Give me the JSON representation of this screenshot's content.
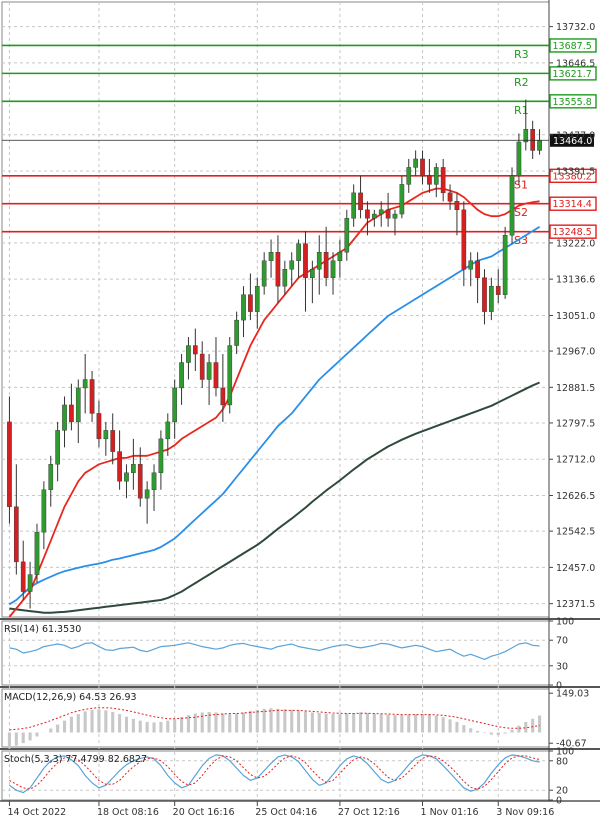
{
  "chart_data": {
    "type": "candlestick",
    "main": {
      "y_ticks": [
        13732.0,
        13646.5,
        13477.0,
        13391.5,
        13222.0,
        13136.6,
        13051.0,
        12967.0,
        12881.5,
        12797.5,
        12712.0,
        12626.5,
        12542.5,
        12457.0,
        12371.5
      ],
      "ylim": [
        12340,
        13790
      ],
      "current_price": "13464.0",
      "levels": [
        {
          "name": "R3",
          "value": 13687.5,
          "label": "13687.5",
          "color": "#1e9a1e"
        },
        {
          "name": "R2",
          "value": 13621.7,
          "label": "13621.7",
          "color": "#1e9a1e"
        },
        {
          "name": "R1",
          "value": 13555.8,
          "label": "13555.8",
          "color": "#1e9a1e"
        },
        {
          "name": "S1",
          "value": 13380.2,
          "label": "13380.2",
          "color": "#e02020"
        },
        {
          "name": "S2",
          "value": 13314.4,
          "label": "13314.4",
          "color": "#e02020"
        },
        {
          "name": "S3",
          "value": 13248.5,
          "label": "13248.5",
          "color": "#e02020"
        }
      ],
      "candles": [
        [
          12800,
          12860,
          12560,
          12600
        ],
        [
          12600,
          12700,
          12440,
          12470
        ],
        [
          12470,
          12520,
          12380,
          12400
        ],
        [
          12400,
          12470,
          12360,
          12440
        ],
        [
          12440,
          12560,
          12420,
          12540
        ],
        [
          12540,
          12660,
          12500,
          12640
        ],
        [
          12640,
          12720,
          12600,
          12700
        ],
        [
          12700,
          12800,
          12660,
          12780
        ],
        [
          12780,
          12860,
          12740,
          12840
        ],
        [
          12840,
          12890,
          12780,
          12800
        ],
        [
          12800,
          12900,
          12750,
          12880
        ],
        [
          12880,
          12960,
          12820,
          12900
        ],
        [
          12900,
          12920,
          12800,
          12820
        ],
        [
          12820,
          12850,
          12740,
          12760
        ],
        [
          12760,
          12800,
          12720,
          12780
        ],
        [
          12780,
          12820,
          12700,
          12730
        ],
        [
          12730,
          12780,
          12640,
          12660
        ],
        [
          12660,
          12700,
          12620,
          12680
        ],
        [
          12680,
          12760,
          12640,
          12700
        ],
        [
          12700,
          12740,
          12600,
          12620
        ],
        [
          12620,
          12660,
          12560,
          12640
        ],
        [
          12640,
          12700,
          12590,
          12680
        ],
        [
          12680,
          12780,
          12640,
          12760
        ],
        [
          12760,
          12820,
          12720,
          12800
        ],
        [
          12800,
          12900,
          12760,
          12880
        ],
        [
          12880,
          12960,
          12840,
          12940
        ],
        [
          12940,
          13000,
          12900,
          12980
        ],
        [
          12980,
          13020,
          12920,
          12960
        ],
        [
          12960,
          12990,
          12880,
          12900
        ],
        [
          12900,
          12960,
          12840,
          12940
        ],
        [
          12940,
          13000,
          12860,
          12880
        ],
        [
          12880,
          12960,
          12800,
          12840
        ],
        [
          12840,
          13000,
          12820,
          12980
        ],
        [
          12980,
          13060,
          12960,
          13040
        ],
        [
          13040,
          13120,
          13000,
          13100
        ],
        [
          13100,
          13150,
          13040,
          13060
        ],
        [
          13060,
          13140,
          13020,
          13120
        ],
        [
          13120,
          13200,
          13100,
          13180
        ],
        [
          13180,
          13230,
          13140,
          13200
        ],
        [
          13200,
          13240,
          13080,
          13120
        ],
        [
          13120,
          13180,
          13100,
          13160
        ],
        [
          13160,
          13200,
          13120,
          13180
        ],
        [
          13180,
          13230,
          13140,
          13220
        ],
        [
          13220,
          13250,
          13060,
          13140
        ],
        [
          13140,
          13180,
          13080,
          13160
        ],
        [
          13160,
          13240,
          13100,
          13200
        ],
        [
          13200,
          13260,
          13120,
          13140
        ],
        [
          13140,
          13200,
          13100,
          13180
        ],
        [
          13180,
          13230,
          13140,
          13200
        ],
        [
          13200,
          13300,
          13180,
          13280
        ],
        [
          13280,
          13360,
          13260,
          13340
        ],
        [
          13340,
          13380,
          13280,
          13300
        ],
        [
          13300,
          13320,
          13240,
          13280
        ],
        [
          13280,
          13300,
          13260,
          13290
        ],
        [
          13290,
          13320,
          13260,
          13300
        ],
        [
          13300,
          13340,
          13260,
          13280
        ],
        [
          13280,
          13300,
          13240,
          13290
        ],
        [
          13290,
          13380,
          13280,
          13360
        ],
        [
          13360,
          13420,
          13340,
          13400
        ],
        [
          13400,
          13440,
          13380,
          13420
        ],
        [
          13420,
          13440,
          13360,
          13380
        ],
        [
          13380,
          13420,
          13340,
          13360
        ],
        [
          13360,
          13410,
          13330,
          13400
        ],
        [
          13400,
          13420,
          13320,
          13340
        ],
        [
          13340,
          13360,
          13300,
          13320
        ],
        [
          13320,
          13340,
          13240,
          13300
        ],
        [
          13300,
          13320,
          13120,
          13160
        ],
        [
          13160,
          13200,
          13120,
          13180
        ],
        [
          13180,
          13200,
          13080,
          13140
        ],
        [
          13140,
          13160,
          13030,
          13060
        ],
        [
          13060,
          13140,
          13040,
          13120
        ],
        [
          13120,
          13160,
          13080,
          13100
        ],
        [
          13100,
          13260,
          13090,
          13240
        ],
        [
          13240,
          13400,
          13220,
          13380
        ],
        [
          13380,
          13480,
          13360,
          13460
        ],
        [
          13460,
          13560,
          13440,
          13490
        ],
        [
          13490,
          13510,
          13420,
          13440
        ],
        [
          13440,
          13490,
          13430,
          13464
        ]
      ],
      "ma_red": [
        12340,
        12360,
        12380,
        12400,
        12440,
        12480,
        12520,
        12560,
        12600,
        12630,
        12660,
        12680,
        12690,
        12700,
        12705,
        12710,
        12715,
        12715,
        12720,
        12720,
        12720,
        12725,
        12730,
        12735,
        12745,
        12760,
        12770,
        12780,
        12790,
        12800,
        12810,
        12830,
        12860,
        12900,
        12940,
        12980,
        13010,
        13040,
        13060,
        13080,
        13100,
        13120,
        13140,
        13150,
        13160,
        13170,
        13180,
        13190,
        13200,
        13210,
        13230,
        13250,
        13270,
        13280,
        13290,
        13300,
        13305,
        13310,
        13320,
        13330,
        13340,
        13345,
        13350,
        13350,
        13345,
        13340,
        13330,
        13315,
        13300,
        13290,
        13285,
        13285,
        13290,
        13300,
        13310,
        13315,
        13318,
        13320
      ],
      "ma_blue": [
        12370,
        12380,
        12395,
        12410,
        12420,
        12428,
        12435,
        12442,
        12448,
        12452,
        12456,
        12460,
        12463,
        12466,
        12470,
        12475,
        12478,
        12482,
        12486,
        12490,
        12494,
        12498,
        12505,
        12515,
        12525,
        12540,
        12555,
        12570,
        12585,
        12600,
        12615,
        12630,
        12650,
        12670,
        12690,
        12710,
        12730,
        12750,
        12770,
        12790,
        12805,
        12820,
        12840,
        12860,
        12880,
        12900,
        12915,
        12930,
        12945,
        12960,
        12975,
        12990,
        13005,
        13020,
        13035,
        13050,
        13060,
        13070,
        13080,
        13090,
        13100,
        13110,
        13120,
        13130,
        13140,
        13150,
        13160,
        13170,
        13180,
        13185,
        13190,
        13200,
        13210,
        13220,
        13230,
        13240,
        13250,
        13260
      ],
      "ma_dark": [
        12360,
        12358,
        12356,
        12354,
        12352,
        12350,
        12350,
        12351,
        12352,
        12354,
        12356,
        12358,
        12360,
        12362,
        12364,
        12366,
        12368,
        12370,
        12372,
        12374,
        12376,
        12378,
        12380,
        12385,
        12392,
        12400,
        12410,
        12420,
        12430,
        12440,
        12450,
        12460,
        12470,
        12480,
        12490,
        12500,
        12510,
        12522,
        12535,
        12548,
        12560,
        12572,
        12585,
        12598,
        12612,
        12625,
        12638,
        12650,
        12662,
        12675,
        12688,
        12700,
        12712,
        12722,
        12732,
        12742,
        12750,
        12758,
        12765,
        12772,
        12778,
        12784,
        12790,
        12796,
        12802,
        12808,
        12814,
        12820,
        12826,
        12832,
        12838,
        12846,
        12854,
        12862,
        12870,
        12878,
        12886,
        12893
      ]
    },
    "rsi": {
      "label": "RSI(14) 61.3530",
      "y_ticks": [
        "100",
        "70",
        "30",
        "0"
      ],
      "tick_values": [
        100,
        70,
        30,
        0
      ],
      "ylim": [
        0,
        100
      ],
      "values": [
        58,
        56,
        50,
        52,
        55,
        60,
        62,
        64,
        62,
        57,
        60,
        65,
        66,
        60,
        55,
        54,
        57,
        58,
        59,
        54,
        52,
        56,
        60,
        61,
        62,
        64,
        66,
        63,
        60,
        58,
        56,
        58,
        62,
        64,
        65,
        62,
        60,
        58,
        56,
        60,
        62,
        64,
        60,
        58,
        56,
        54,
        57,
        60,
        62,
        63,
        60,
        58,
        60,
        62,
        65,
        64,
        61,
        58,
        60,
        62,
        60,
        56,
        52,
        54,
        56,
        50,
        45,
        48,
        44,
        40,
        45,
        48,
        52,
        58,
        64,
        66,
        62,
        61
      ]
    },
    "macd": {
      "label": "MACD(12,26,9) 64.53 26.93",
      "y_ticks": [
        "149.03",
        "-40.67"
      ],
      "tick_values": [
        149.03,
        -40.67
      ],
      "ylim": [
        -55,
        165
      ],
      "hist": [
        -60,
        -50,
        -40,
        -30,
        -15,
        0,
        15,
        30,
        45,
        60,
        70,
        80,
        85,
        88,
        84,
        78,
        70,
        60,
        52,
        45,
        40,
        38,
        40,
        45,
        50,
        58,
        66,
        72,
        76,
        78,
        76,
        72,
        70,
        72,
        76,
        82,
        86,
        90,
        92,
        90,
        88,
        86,
        84,
        80,
        76,
        74,
        72,
        70,
        70,
        72,
        74,
        76,
        74,
        72,
        70,
        68,
        66,
        66,
        68,
        70,
        70,
        68,
        64,
        58,
        50,
        40,
        28,
        16,
        6,
        -2,
        -8,
        -10,
        -4,
        10,
        26,
        40,
        52,
        64.53
      ],
      "signal": [
        10,
        12,
        15,
        20,
        28,
        36,
        45,
        55,
        65,
        75,
        82,
        88,
        92,
        94,
        94,
        92,
        88,
        84,
        78,
        72,
        66,
        60,
        56,
        52,
        52,
        54,
        56,
        58,
        62,
        66,
        68,
        70,
        72,
        72,
        74,
        76,
        78,
        80,
        82,
        84,
        84,
        84,
        84,
        82,
        80,
        78,
        76,
        74,
        73,
        72,
        72,
        73,
        73,
        72,
        71,
        70,
        69,
        68,
        68,
        68,
        68,
        68,
        67,
        65,
        62,
        58,
        52,
        46,
        40,
        34,
        28,
        22,
        18,
        16,
        16,
        18,
        22,
        26.93
      ]
    },
    "stoch": {
      "label": "Stoch(5,3,3) 77.4799 82.6827",
      "y_ticks": [
        "100",
        "80",
        "20",
        "0"
      ],
      "tick_values": [
        100,
        80,
        20,
        0
      ],
      "ylim": [
        0,
        100
      ],
      "k": [
        30,
        20,
        15,
        25,
        45,
        65,
        80,
        88,
        90,
        82,
        70,
        50,
        35,
        25,
        30,
        45,
        60,
        72,
        80,
        85,
        88,
        84,
        70,
        50,
        35,
        25,
        30,
        50,
        70,
        85,
        92,
        90,
        80,
        65,
        50,
        40,
        45,
        60,
        75,
        88,
        92,
        88,
        78,
        60,
        42,
        30,
        35,
        52,
        70,
        84,
        90,
        86,
        74,
        58,
        42,
        35,
        40,
        55,
        72,
        86,
        92,
        90,
        84,
        70,
        55,
        40,
        25,
        18,
        22,
        35,
        55,
        72,
        86,
        92,
        90,
        86,
        80,
        77.48
      ],
      "d": [
        40,
        32,
        25,
        22,
        30,
        45,
        62,
        76,
        86,
        88,
        82,
        70,
        55,
        40,
        32,
        32,
        40,
        55,
        68,
        78,
        84,
        86,
        80,
        68,
        52,
        38,
        30,
        35,
        50,
        68,
        82,
        90,
        88,
        80,
        66,
        52,
        45,
        48,
        60,
        74,
        86,
        90,
        86,
        76,
        60,
        46,
        36,
        40,
        54,
        70,
        82,
        88,
        84,
        74,
        60,
        46,
        40,
        45,
        58,
        72,
        85,
        90,
        88,
        80,
        68,
        54,
        38,
        26,
        22,
        28,
        42,
        58,
        74,
        86,
        90,
        90,
        86,
        82.68
      ]
    },
    "x_labels": [
      {
        "label": "14 Oct 2022",
        "index": 0
      },
      {
        "label": "18 Oct 08:16",
        "index": 13
      },
      {
        "label": "20 Oct 16:16",
        "index": 24
      },
      {
        "label": "25 Oct 04:16",
        "index": 36
      },
      {
        "label": "27 Oct 12:16",
        "index": 48
      },
      {
        "label": "1 Nov 01:16",
        "index": 60
      },
      {
        "label": "3 Nov 09:16",
        "index": 71
      }
    ],
    "colors": {
      "up": "#2f9a2f",
      "down": "#d42020",
      "ma_red": "#e8281e",
      "ma_blue": "#2b8fe8",
      "ma_dark": "#2f4a3a",
      "osc": "#5aa3d8",
      "macd_hist": "#c8c8c8",
      "macd_signal": "#e02020",
      "stoch_k": "#5aa3d8",
      "stoch_d": "#e02020",
      "grid": "#c8c8c8"
    }
  }
}
